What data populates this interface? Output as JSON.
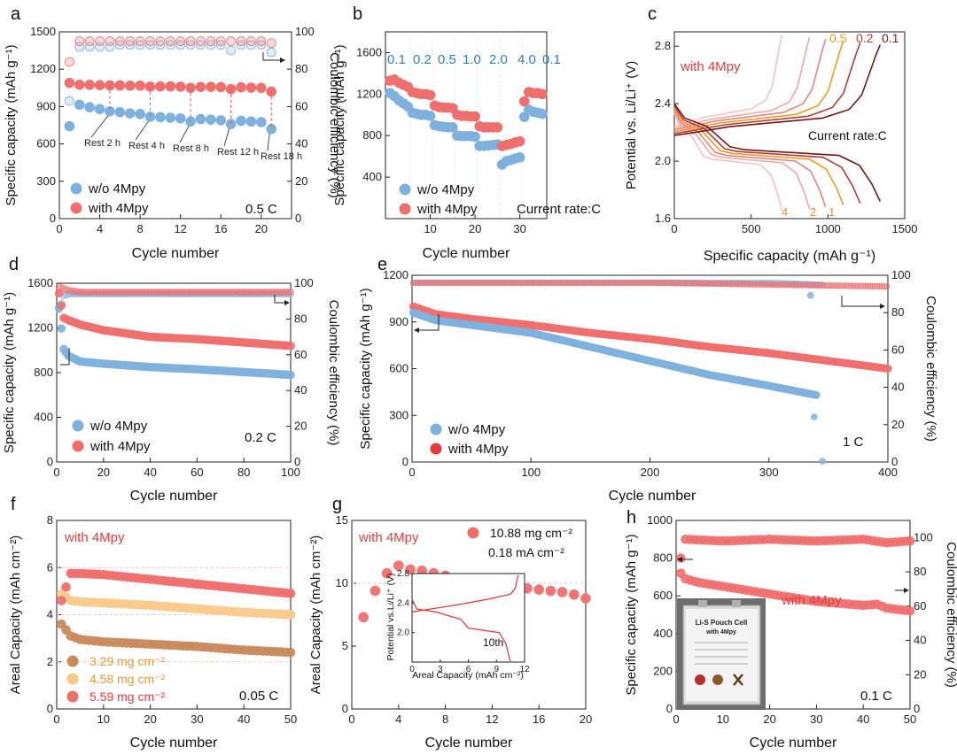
{
  "chart_data": [
    {
      "panel": "a",
      "type": "scatter",
      "xlabel": "Cycle number",
      "ylabel": "Specific capacity (mAh g⁻¹)",
      "y2label": "Coulombic efficiency (%)",
      "xlim": [
        0,
        23
      ],
      "ylim": [
        0,
        1500
      ],
      "y2lim": [
        0,
        100
      ],
      "xticks": [
        0,
        4,
        8,
        12,
        16,
        20
      ],
      "yticks": [
        0,
        300,
        600,
        900,
        1200,
        1500
      ],
      "y2ticks": [
        0,
        20,
        40,
        60,
        80,
        100
      ],
      "legend": [
        "w/o 4Mpy",
        "with 4Mpy"
      ],
      "rate_label": "0.5 C",
      "annotations": [
        "Rest 2 h",
        "Rest 4 h",
        "Rest 8 h",
        "Rest 12 h",
        "Rest 18 h"
      ],
      "series": [
        {
          "name": "w/o 4Mpy",
          "color": "#7fb1de",
          "axis": "left",
          "x": [
            1,
            2,
            3,
            4,
            5,
            6,
            7,
            8,
            9,
            10,
            11,
            12,
            13,
            14,
            15,
            16,
            17,
            18,
            19,
            20,
            21
          ],
          "values": [
            742,
            915,
            895,
            880,
            862,
            855,
            845,
            840,
            818,
            815,
            810,
            805,
            780,
            800,
            795,
            790,
            760,
            785,
            780,
            775,
            720
          ]
        },
        {
          "name": "with 4Mpy",
          "color": "#ef6f6f",
          "axis": "left",
          "x": [
            1,
            2,
            3,
            4,
            5,
            6,
            7,
            8,
            9,
            10,
            11,
            12,
            13,
            14,
            15,
            16,
            17,
            18,
            19,
            20,
            21
          ],
          "values": [
            1090,
            1075,
            1075,
            1072,
            1070,
            1070,
            1068,
            1068,
            1060,
            1062,
            1062,
            1060,
            1050,
            1058,
            1058,
            1056,
            1040,
            1055,
            1052,
            1050,
            1020
          ]
        },
        {
          "name": "w/o 4Mpy",
          "color": "#7fb1de",
          "axis": "right",
          "x": [
            1,
            2,
            3,
            4,
            5,
            6,
            7,
            8,
            9,
            10,
            11,
            12,
            13,
            14,
            15,
            16,
            17,
            18,
            19,
            20,
            21
          ],
          "values": [
            63,
            92,
            92,
            92,
            92,
            93,
            93,
            93,
            93,
            93,
            93,
            93,
            93,
            93,
            93,
            93,
            90,
            93,
            93,
            93,
            89
          ]
        },
        {
          "name": "with 4Mpy",
          "color": "#ef6f6f",
          "axis": "right",
          "x": [
            1,
            2,
            3,
            4,
            5,
            6,
            7,
            8,
            9,
            10,
            11,
            12,
            13,
            14,
            15,
            16,
            17,
            18,
            19,
            20,
            21
          ],
          "values": [
            84,
            95,
            95,
            95,
            95,
            95,
            95,
            95,
            95,
            95,
            95,
            95,
            95,
            95,
            95,
            95,
            95,
            95,
            95,
            95,
            94
          ]
        }
      ]
    },
    {
      "panel": "b",
      "type": "scatter",
      "xlabel": "Cycle number",
      "ylabel": "Specific capacity (mAh g⁻¹)",
      "xlim": [
        0,
        36
      ],
      "ylim": [
        0,
        1800
      ],
      "xticks": [
        10,
        20,
        30
      ],
      "yticks": [
        400,
        800,
        1200,
        1600
      ],
      "legend": [
        "w/o 4Mpy",
        "with 4Mpy"
      ],
      "rate_label": "Current rate:C",
      "rate_steps": [
        "0.1",
        "0.2",
        "0.5",
        "1.0",
        "2.0",
        "4.0",
        "0.1"
      ],
      "series": [
        {
          "name": "w/o 4Mpy",
          "color": "#7fb1de",
          "x": [
            1,
            2,
            3,
            4,
            5,
            6,
            7,
            8,
            9,
            10,
            11,
            12,
            13,
            14,
            15,
            16,
            17,
            18,
            19,
            20,
            21,
            22,
            23,
            24,
            25,
            26,
            27,
            28,
            29,
            30,
            31,
            32,
            33,
            34,
            35
          ],
          "values": [
            1210,
            1180,
            1140,
            1110,
            1080,
            1020,
            1010,
            1000,
            1000,
            990,
            900,
            890,
            885,
            880,
            880,
            800,
            795,
            795,
            795,
            790,
            700,
            700,
            705,
            710,
            715,
            520,
            555,
            565,
            580,
            590,
            980,
            1050,
            1030,
            1020,
            1010
          ]
        },
        {
          "name": "with 4Mpy",
          "color": "#ef6f6f",
          "x": [
            1,
            2,
            3,
            4,
            5,
            6,
            7,
            8,
            9,
            10,
            11,
            12,
            13,
            14,
            15,
            16,
            17,
            18,
            19,
            20,
            21,
            22,
            23,
            24,
            25,
            26,
            27,
            28,
            29,
            30,
            31,
            32,
            33,
            34,
            35
          ],
          "values": [
            1330,
            1340,
            1310,
            1290,
            1270,
            1220,
            1210,
            1200,
            1200,
            1190,
            1090,
            1075,
            1070,
            1070,
            1065,
            1000,
            990,
            990,
            985,
            985,
            890,
            880,
            880,
            880,
            880,
            700,
            710,
            720,
            735,
            745,
            1130,
            1220,
            1210,
            1210,
            1200
          ]
        }
      ]
    },
    {
      "panel": "c",
      "type": "line",
      "xlabel": "Specific capacity (mAh g⁻¹)",
      "ylabel": "Potential vs. Li/Li⁺ (V)",
      "xlim": [
        0,
        1500
      ],
      "ylim": [
        1.6,
        2.9
      ],
      "xticks": [
        0,
        500,
        1000,
        1500
      ],
      "yticks": [
        1.6,
        2.0,
        2.4,
        2.8
      ],
      "title": "with 4Mpy",
      "rate_label": "Current rate:C",
      "top_labels": [
        "0.5",
        "0.2",
        "0.1"
      ],
      "bottom_labels": [
        "4",
        "2",
        "1"
      ],
      "series": [
        {
          "name": "4",
          "color": "#f7c2c2",
          "xmax": 700
        },
        {
          "name": "2",
          "color": "#f3a6a6",
          "xmax": 880
        },
        {
          "name": "1",
          "color": "#e58383",
          "xmax": 985
        },
        {
          "name": "0.5",
          "color": "#f39a1d",
          "xmax": 1100
        },
        {
          "name": "0.2",
          "color": "#b73a3a",
          "xmax": 1210
        },
        {
          "name": "0.1",
          "color": "#7a1515",
          "xmax": 1340
        }
      ]
    },
    {
      "panel": "d",
      "type": "scatter",
      "xlabel": "Cycle number",
      "ylabel": "Specific capacity (mAh g⁻¹)",
      "y2label": "Coulombic efficiency (%)",
      "xlim": [
        0,
        100
      ],
      "ylim": [
        0,
        1600
      ],
      "y2lim": [
        0,
        100
      ],
      "xticks": [
        0,
        20,
        40,
        60,
        80,
        100
      ],
      "yticks": [
        0,
        400,
        800,
        1200,
        1600
      ],
      "y2ticks": [
        0,
        20,
        40,
        60,
        80,
        100
      ],
      "legend": [
        "w/o 4Mpy",
        "with 4Mpy"
      ],
      "rate_label": "0.2 C",
      "series": [
        {
          "name": "w/o 4Mpy",
          "color": "#7fb1de",
          "x": [
            1,
            3,
            5,
            10,
            20,
            40,
            60,
            80,
            100
          ],
          "values": [
            1380,
            1010,
            950,
            900,
            880,
            850,
            830,
            805,
            780
          ]
        },
        {
          "name": "with 4Mpy",
          "color": "#ef6f6f",
          "x": [
            1,
            3,
            5,
            10,
            20,
            40,
            60,
            80,
            100
          ],
          "values": [
            1510,
            1290,
            1270,
            1230,
            1180,
            1120,
            1100,
            1070,
            1040
          ]
        },
        {
          "name": "w/o 4Mpy",
          "color": "#7fb1de",
          "axis": "right",
          "x": [
            1,
            3,
            5,
            10,
            100
          ],
          "values": [
            85,
            93,
            94,
            94,
            94
          ]
        },
        {
          "name": "with 4Mpy",
          "color": "#ef6f6f",
          "axis": "right",
          "x": [
            1,
            3,
            5,
            10,
            100
          ],
          "values": [
            98,
            97,
            96,
            95,
            95
          ]
        }
      ]
    },
    {
      "panel": "e",
      "type": "scatter",
      "xlabel": "Cycle number",
      "ylabel": "Specific capacity (mAh g⁻¹)",
      "y2label": "Coulombic efficiency (%)",
      "xlim": [
        0,
        400
      ],
      "ylim": [
        0,
        1200
      ],
      "y2lim": [
        0,
        100
      ],
      "xticks": [
        0,
        100,
        200,
        300,
        400
      ],
      "yticks": [
        0,
        300,
        600,
        900,
        1200
      ],
      "y2ticks": [
        0,
        20,
        40,
        60,
        80,
        100
      ],
      "legend": [
        "w/o 4Mpy",
        "with 4Mpy"
      ],
      "rate_label": "1 C",
      "series": [
        {
          "name": "w/o 4Mpy",
          "color": "#7fb1de",
          "x": [
            1,
            20,
            50,
            100,
            150,
            200,
            250,
            300,
            340
          ],
          "values": [
            960,
            910,
            880,
            830,
            740,
            650,
            560,
            490,
            430
          ]
        },
        {
          "name": "with 4Mpy",
          "color": "#ef6f6f",
          "x": [
            1,
            20,
            50,
            100,
            150,
            200,
            250,
            300,
            350,
            400
          ],
          "values": [
            1000,
            950,
            920,
            880,
            830,
            790,
            740,
            700,
            650,
            600
          ]
        },
        {
          "name": "w/o 4Mpy",
          "color": "#7fb1de",
          "axis": "right",
          "x": [
            1,
            100,
            200,
            300,
            345
          ],
          "values": [
            96,
            96,
            96,
            96,
            95
          ]
        },
        {
          "name": "with 4Mpy",
          "color": "#ef6f6f",
          "axis": "right",
          "x": [
            1,
            100,
            200,
            300,
            400
          ],
          "values": [
            96,
            96,
            96,
            95,
            94
          ]
        }
      ]
    },
    {
      "panel": "f",
      "type": "scatter",
      "xlabel": "Cycle number",
      "ylabel": "Areal Capacity (mAh cm⁻²)",
      "xlim": [
        0,
        50
      ],
      "ylim": [
        0,
        8
      ],
      "xticks": [
        0,
        10,
        20,
        30,
        40,
        50
      ],
      "yticks": [
        0,
        2,
        4,
        6,
        8
      ],
      "title": "with 4Mpy",
      "rate_label": "0.05 C",
      "legend": [
        "3.29 mg cm⁻²",
        "4.58 mg cm⁻²",
        "5.59 mg cm⁻²"
      ],
      "series": [
        {
          "name": "3.29 mg cm⁻²",
          "color": "#c98a5e",
          "x": [
            1,
            3,
            5,
            10,
            20,
            30,
            40,
            50
          ],
          "values": [
            3.6,
            3.1,
            2.95,
            2.85,
            2.75,
            2.65,
            2.5,
            2.4
          ]
        },
        {
          "name": "4.58 mg cm⁻²",
          "color": "#fbc98c",
          "x": [
            1,
            3,
            5,
            10,
            20,
            30,
            40,
            50
          ],
          "values": [
            4.9,
            4.6,
            4.55,
            4.5,
            4.4,
            4.25,
            4.1,
            4.0
          ]
        },
        {
          "name": "5.59 mg cm⁻²",
          "color": "#ef6f6f",
          "x": [
            1,
            3,
            5,
            10,
            20,
            30,
            40,
            50
          ],
          "values": [
            4.6,
            5.75,
            5.75,
            5.7,
            5.5,
            5.3,
            5.1,
            4.9
          ]
        }
      ]
    },
    {
      "panel": "g",
      "type": "scatter",
      "xlabel": "Cycle number",
      "ylabel": "Areal Capacity (mAh cm⁻²)",
      "xlim": [
        0,
        20
      ],
      "ylim": [
        0,
        15
      ],
      "xticks": [
        0,
        4,
        8,
        12,
        16,
        20
      ],
      "yticks": [
        0,
        5,
        10,
        15
      ],
      "title": "with 4Mpy",
      "legend": [
        "10.88 mg cm⁻²",
        "0.18 mA cm⁻²"
      ],
      "series": [
        {
          "name": "10.88 mg cm⁻²",
          "color": "#ef6f6f",
          "x": [
            1,
            2,
            3,
            4,
            5,
            6,
            7,
            8,
            9,
            10,
            11,
            12,
            13,
            14,
            15,
            16,
            17,
            18,
            19,
            20
          ],
          "values": [
            7.3,
            9.4,
            10.8,
            11.4,
            11.1,
            11.0,
            10.8,
            10.6,
            10.4,
            10.1,
            9.9,
            9.8,
            9.7,
            9.6,
            9.6,
            9.5,
            9.4,
            9.3,
            9.1,
            8.8
          ]
        }
      ],
      "inset": {
        "xlabel": "Areal Capacity (mAh cm⁻²)",
        "ylabel": "Potential vs.Li/Li⁺ (V)",
        "xticks": [
          0,
          3,
          6,
          9,
          12
        ],
        "yticks": [
          2.0,
          2.4,
          2.8
        ],
        "label": "10th"
      }
    },
    {
      "panel": "h",
      "type": "scatter",
      "xlabel": "Cycle number",
      "ylabel": "Specific capacity (mAh g⁻¹)",
      "y2label": "Coulombic efficiency (%)",
      "xlim": [
        0,
        50
      ],
      "ylim": [
        0,
        1000
      ],
      "y2lim": [
        0,
        110
      ],
      "xticks": [
        0,
        10,
        20,
        30,
        40,
        50
      ],
      "yticks": [
        0,
        200,
        400,
        600,
        800,
        1000
      ],
      "y2ticks": [
        0,
        20,
        40,
        60,
        80,
        100
      ],
      "title": "with 4Mpy",
      "rate_label": "0.1 C",
      "photo_text": [
        "Li-S Pouch Cell",
        "with 4Mpy"
      ],
      "series": [
        {
          "name": "with 4Mpy",
          "color": "#ef6f6f",
          "x": [
            1,
            2,
            5,
            10,
            20,
            30,
            40,
            43,
            45,
            50
          ],
          "values": [
            720,
            690,
            670,
            650,
            610,
            570,
            550,
            555,
            535,
            520
          ]
        },
        {
          "name": "with 4Mpy",
          "color": "#ef6f6f",
          "axis": "right",
          "x": [
            1,
            2,
            10,
            20,
            30,
            40,
            45,
            50
          ],
          "values": [
            88,
            99,
            98,
            99,
            98,
            99,
            97,
            98
          ]
        }
      ]
    }
  ]
}
